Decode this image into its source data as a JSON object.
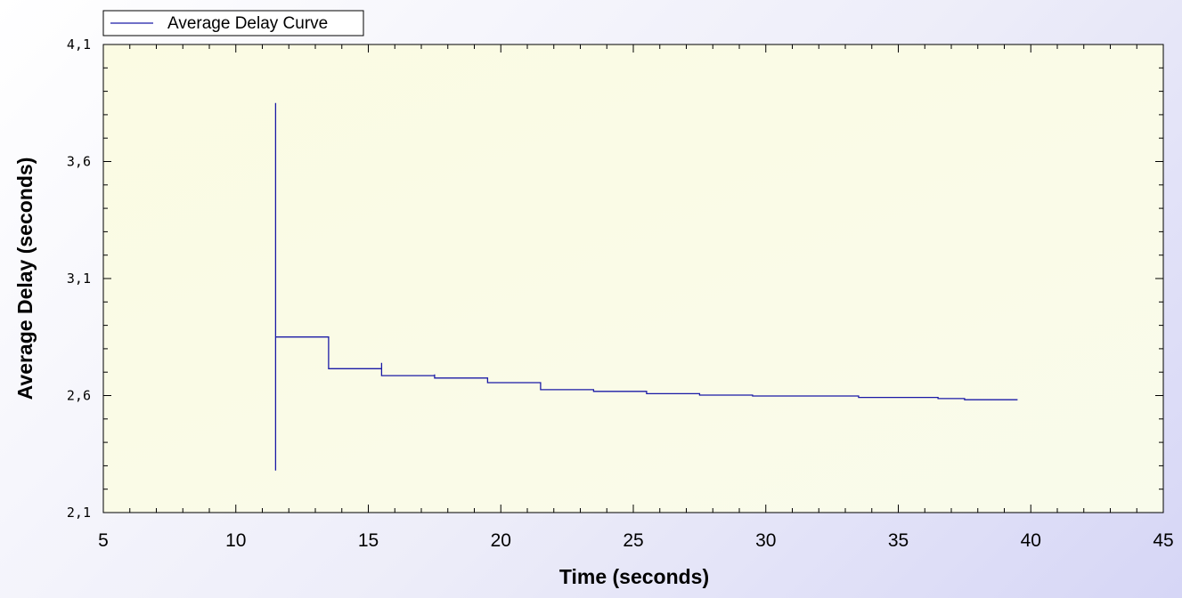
{
  "chart_data": {
    "type": "line",
    "title": "",
    "xlabel": "Time (seconds)",
    "ylabel": "Average Delay (seconds)",
    "xlim": [
      5,
      45
    ],
    "ylim": [
      2.1,
      4.1
    ],
    "x_ticks": [
      5,
      10,
      15,
      20,
      25,
      30,
      35,
      40,
      45
    ],
    "x_tick_labels": [
      "5",
      "10",
      "15",
      "20",
      "25",
      "30",
      "35",
      "40",
      "45"
    ],
    "y_ticks": [
      2.1,
      2.6,
      3.1,
      3.6,
      4.1
    ],
    "y_tick_labels": [
      "2,1",
      "2,6",
      "3,1",
      "3,6",
      "4,1"
    ],
    "grid": false,
    "legend_position": "top-left",
    "line_style": "step",
    "series": [
      {
        "name": "Average Delay Curve",
        "color": "#1a1aa6",
        "points": [
          [
            11.5,
            2.28
          ],
          [
            11.5,
            3.85
          ],
          [
            11.5,
            2.85
          ],
          [
            13.5,
            2.85
          ],
          [
            13.5,
            2.715
          ],
          [
            15.5,
            2.715
          ],
          [
            15.5,
            2.74
          ],
          [
            15.5,
            2.685
          ],
          [
            17.5,
            2.685
          ],
          [
            17.5,
            2.69
          ],
          [
            17.5,
            2.675
          ],
          [
            19.5,
            2.675
          ],
          [
            19.5,
            2.655
          ],
          [
            21.5,
            2.655
          ],
          [
            21.5,
            2.625
          ],
          [
            23.5,
            2.625
          ],
          [
            23.5,
            2.618
          ],
          [
            25.5,
            2.618
          ],
          [
            25.5,
            2.608
          ],
          [
            27.5,
            2.608
          ],
          [
            27.5,
            2.602
          ],
          [
            29.5,
            2.602
          ],
          [
            29.5,
            2.598
          ],
          [
            33.5,
            2.598
          ],
          [
            33.5,
            2.592
          ],
          [
            36.5,
            2.592
          ],
          [
            36.5,
            2.587
          ],
          [
            37.5,
            2.587
          ],
          [
            37.5,
            2.582
          ],
          [
            39.5,
            2.582
          ]
        ]
      }
    ],
    "colors": {
      "plot_background": "#fbfbe3",
      "frame": "#000000",
      "series": "#1a1aa6"
    }
  }
}
